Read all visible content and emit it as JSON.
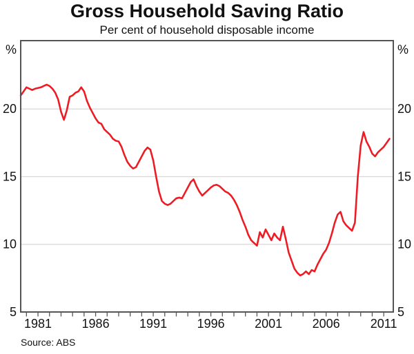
{
  "title": "Gross Household Saving Ratio",
  "subtitle": "Per cent of household disposable income",
  "source": "Source: ABS",
  "colors": {
    "line": "#ED1C24",
    "grid": "#D7D7D7",
    "axis": "#555555",
    "text": "#111111"
  },
  "chart_data": {
    "type": "line",
    "title": "Gross Household Saving Ratio",
    "subtitle": "Per cent of household disposable income",
    "series_name": "Gross household saving ratio",
    "unit": "%",
    "xlim": [
      1979.5,
      2011.83
    ],
    "ylim": [
      5,
      25.05
    ],
    "grid": "horizontal-only",
    "y_ticks": [
      20,
      15,
      10,
      5
    ],
    "y_axis_unit_label": "%",
    "x_tick_labels": [
      1981,
      1986,
      1991,
      1996,
      2001,
      2006,
      2011
    ],
    "x_minor_ticks": [
      1980,
      1981,
      1982,
      1983,
      1984,
      1985,
      1986,
      1987,
      1988,
      1989,
      1990,
      1991,
      1992,
      1993,
      1994,
      1995,
      1996,
      1997,
      1998,
      1999,
      2000,
      2001,
      2002,
      2003,
      2004,
      2005,
      2006,
      2007,
      2008,
      2009,
      2010,
      2011
    ],
    "x_start": 1979.5,
    "x_step": 0.25,
    "values": [
      21.0,
      21.3,
      21.6,
      21.5,
      21.4,
      21.5,
      21.55,
      21.6,
      21.7,
      21.8,
      21.7,
      21.5,
      21.2,
      20.7,
      19.8,
      19.2,
      19.9,
      20.9,
      21.0,
      21.2,
      21.3,
      21.6,
      21.3,
      20.6,
      20.1,
      19.7,
      19.3,
      19.0,
      18.9,
      18.5,
      18.3,
      18.1,
      17.8,
      17.65,
      17.6,
      17.2,
      16.6,
      16.1,
      15.8,
      15.6,
      15.7,
      16.1,
      16.5,
      16.9,
      17.15,
      17.0,
      16.2,
      15.0,
      13.9,
      13.2,
      13.0,
      12.9,
      13.0,
      13.2,
      13.4,
      13.45,
      13.4,
      13.8,
      14.2,
      14.6,
      14.8,
      14.3,
      13.9,
      13.6,
      13.8,
      14.0,
      14.2,
      14.35,
      14.4,
      14.3,
      14.1,
      13.9,
      13.8,
      13.6,
      13.3,
      12.9,
      12.4,
      11.8,
      11.3,
      10.7,
      10.3,
      10.1,
      9.9,
      10.9,
      10.5,
      11.1,
      10.7,
      10.3,
      10.8,
      10.5,
      10.3,
      11.3,
      10.4,
      9.4,
      8.8,
      8.2,
      7.9,
      7.7,
      7.8,
      8.0,
      7.8,
      8.1,
      8.0,
      8.5,
      8.9,
      9.3,
      9.6,
      10.1,
      10.8,
      11.6,
      12.2,
      12.4,
      11.7,
      11.4,
      11.2,
      11.0,
      11.6,
      15.0,
      17.3,
      18.3,
      17.6,
      17.2,
      16.7,
      16.5,
      16.8,
      17.0,
      17.2,
      17.5,
      17.8
    ]
  }
}
